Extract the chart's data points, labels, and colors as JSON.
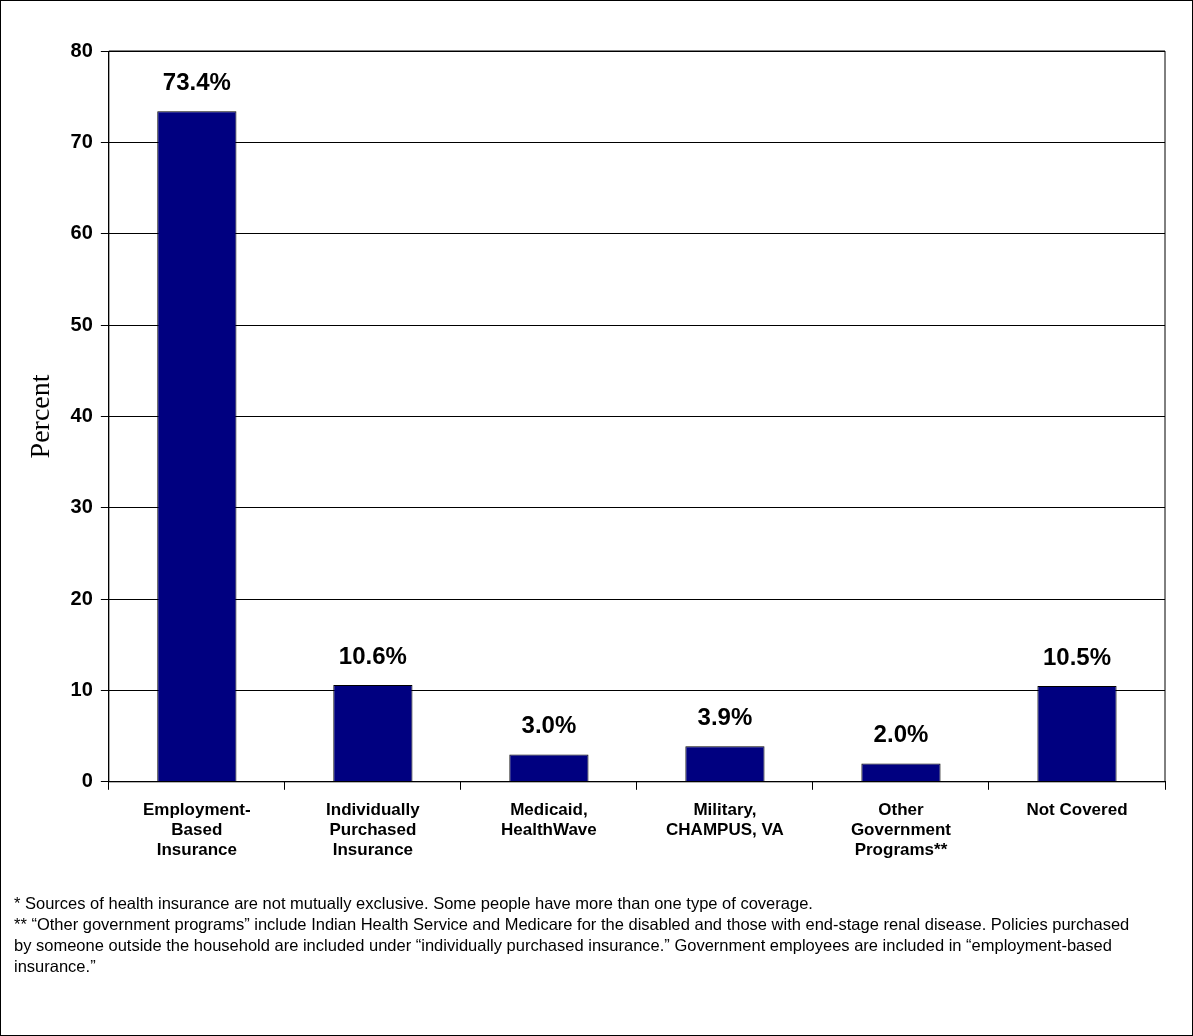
{
  "chart_data": {
    "type": "bar",
    "ylabel": "Percent",
    "categories": [
      "Employment-\nBased\nInsurance",
      "Individually\nPurchased\nInsurance",
      "Medicaid,\nHealthWave",
      "Military,\nCHAMPUS, VA",
      "Other\nGovernment\nPrograms**",
      "Not Covered"
    ],
    "values": [
      73.4,
      10.6,
      3.0,
      3.9,
      2.0,
      10.5
    ],
    "value_labels": [
      "73.4%",
      "10.6%",
      "3.0%",
      "3.9%",
      "2.0%",
      "10.5%"
    ],
    "color": "#000080",
    "ylim": [
      0,
      80
    ],
    "yticks": [
      0,
      10,
      20,
      30,
      40,
      50,
      60,
      70,
      80
    ],
    "grid": "y",
    "legend": false,
    "annotations": [
      "* Sources of health insurance are not mutually exclusive.  Some people have more than one type of coverage.",
      "** “Other government programs” include Indian Health Service and Medicare for the disabled and those with end-stage renal disease.  Policies purchased by someone outside the household are included under “individually purchased insurance.”  Government employees are included in “employment-based insurance.”"
    ]
  }
}
